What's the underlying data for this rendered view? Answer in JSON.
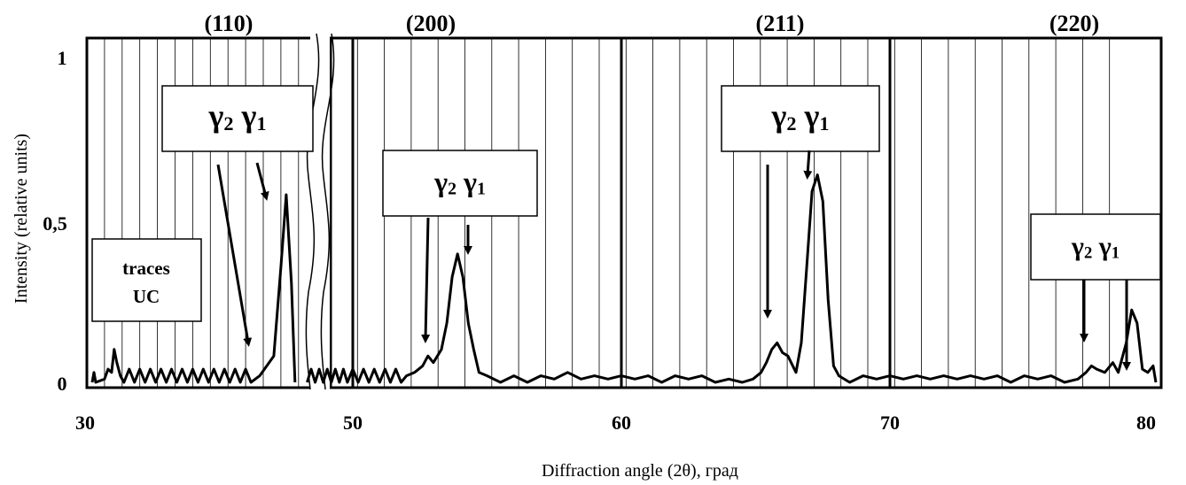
{
  "chart_data": {
    "type": "line",
    "xlabel": "Diffraction angle (2θ), град",
    "ylabel": "Intensity (relative units)",
    "x_tick_labels": [
      "30",
      "50",
      "60",
      "70",
      "80"
    ],
    "y_tick_labels": [
      "0",
      "0,5",
      "1"
    ],
    "xlim": [
      30,
      80
    ],
    "ylim": [
      0,
      1
    ],
    "axis_break": "between 40 and 50 (broken axis)",
    "grid": "vertical lines only",
    "reflections": [
      "(110)",
      "(200)",
      "(211)",
      "(220)"
    ],
    "annotations": {
      "traces_line1": "traces",
      "traces_line2": "UC",
      "gamma2": "γ",
      "gamma2_sub": "2",
      "gamma1": "γ",
      "gamma1_sub": "1"
    },
    "series": [
      {
        "points": [
          [
            30.3,
            0.0
          ],
          [
            30.4,
            0.03
          ],
          [
            30.5,
            0.0
          ],
          [
            31.0,
            0.01
          ],
          [
            31.2,
            0.04
          ],
          [
            31.4,
            0.03
          ],
          [
            31.55,
            0.1
          ],
          [
            31.7,
            0.06
          ],
          [
            31.9,
            0.02
          ],
          [
            32.1,
            0.0
          ],
          [
            32.4,
            0.04
          ],
          [
            32.7,
            0.0
          ],
          [
            33.0,
            0.04
          ],
          [
            33.3,
            0.0
          ],
          [
            33.6,
            0.04
          ],
          [
            33.9,
            0.0
          ],
          [
            34.2,
            0.04
          ],
          [
            34.5,
            0.0
          ],
          [
            34.8,
            0.04
          ],
          [
            35.1,
            0.0
          ],
          [
            35.4,
            0.04
          ],
          [
            35.7,
            0.0
          ],
          [
            36.0,
            0.04
          ],
          [
            36.3,
            0.0
          ],
          [
            36.6,
            0.04
          ],
          [
            36.9,
            0.0
          ],
          [
            37.2,
            0.04
          ],
          [
            37.5,
            0.0
          ],
          [
            37.8,
            0.04
          ],
          [
            38.1,
            0.0
          ],
          [
            38.4,
            0.04
          ],
          [
            38.7,
            0.0
          ],
          [
            39.0,
            0.04
          ],
          [
            39.3,
            0.0
          ],
          [
            39.8,
            0.02
          ],
          [
            40.6,
            0.08
          ],
          [
            41.0,
            0.35
          ],
          [
            41.3,
            0.57
          ],
          [
            41.6,
            0.3
          ],
          [
            41.8,
            0.0
          ]
        ]
      },
      {
        "points": [
          [
            48.3,
            0.0
          ],
          [
            48.45,
            0.04
          ],
          [
            48.6,
            0.0
          ],
          [
            48.75,
            0.04
          ],
          [
            48.9,
            0.0
          ],
          [
            49.05,
            0.04
          ],
          [
            49.2,
            0.0
          ],
          [
            49.35,
            0.04
          ],
          [
            49.5,
            0.0
          ],
          [
            49.65,
            0.04
          ],
          [
            49.8,
            0.0
          ],
          [
            50.0,
            0.04
          ],
          [
            50.2,
            0.0
          ],
          [
            50.4,
            0.04
          ],
          [
            50.6,
            0.0
          ],
          [
            50.8,
            0.04
          ],
          [
            51.0,
            0.0
          ],
          [
            51.2,
            0.04
          ],
          [
            51.4,
            0.0
          ],
          [
            51.6,
            0.04
          ],
          [
            51.8,
            0.0
          ],
          [
            52.0,
            0.02
          ],
          [
            52.3,
            0.03
          ],
          [
            52.6,
            0.05
          ],
          [
            52.8,
            0.08
          ],
          [
            53.0,
            0.06
          ],
          [
            53.3,
            0.1
          ],
          [
            53.5,
            0.18
          ],
          [
            53.7,
            0.32
          ],
          [
            53.9,
            0.39
          ],
          [
            54.1,
            0.32
          ],
          [
            54.3,
            0.18
          ],
          [
            54.5,
            0.1
          ],
          [
            54.7,
            0.03
          ],
          [
            55.0,
            0.02
          ],
          [
            55.5,
            0.0
          ],
          [
            56.0,
            0.02
          ],
          [
            56.5,
            0.0
          ],
          [
            57.0,
            0.02
          ],
          [
            57.5,
            0.01
          ],
          [
            58.0,
            0.03
          ],
          [
            58.5,
            0.01
          ],
          [
            59.0,
            0.02
          ],
          [
            59.5,
            0.01
          ],
          [
            60.0,
            0.02
          ],
          [
            60.5,
            0.01
          ],
          [
            61.0,
            0.02
          ],
          [
            61.5,
            0.0
          ],
          [
            62.0,
            0.02
          ],
          [
            62.5,
            0.01
          ],
          [
            63.0,
            0.02
          ],
          [
            63.5,
            0.0
          ],
          [
            64.0,
            0.01
          ],
          [
            64.5,
            0.0
          ],
          [
            64.9,
            0.01
          ],
          [
            65.2,
            0.03
          ],
          [
            65.4,
            0.06
          ],
          [
            65.6,
            0.1
          ],
          [
            65.8,
            0.12
          ],
          [
            66.0,
            0.09
          ],
          [
            66.2,
            0.08
          ],
          [
            66.5,
            0.03
          ],
          [
            66.7,
            0.12
          ],
          [
            66.9,
            0.35
          ],
          [
            67.1,
            0.58
          ],
          [
            67.3,
            0.63
          ],
          [
            67.5,
            0.55
          ],
          [
            67.7,
            0.25
          ],
          [
            67.9,
            0.05
          ],
          [
            68.1,
            0.02
          ],
          [
            68.5,
            0.0
          ],
          [
            69.0,
            0.02
          ],
          [
            69.5,
            0.01
          ],
          [
            70.0,
            0.02
          ],
          [
            70.5,
            0.01
          ],
          [
            71.0,
            0.02
          ],
          [
            71.5,
            0.01
          ],
          [
            72.0,
            0.02
          ],
          [
            72.5,
            0.01
          ],
          [
            73.0,
            0.02
          ],
          [
            73.5,
            0.01
          ],
          [
            74.0,
            0.02
          ],
          [
            74.5,
            0.0
          ],
          [
            75.0,
            0.02
          ],
          [
            75.5,
            0.01
          ],
          [
            76.0,
            0.02
          ],
          [
            76.5,
            0.0
          ],
          [
            77.0,
            0.01
          ],
          [
            77.3,
            0.03
          ],
          [
            77.5,
            0.05
          ],
          [
            77.7,
            0.04
          ],
          [
            78.0,
            0.03
          ],
          [
            78.3,
            0.06
          ],
          [
            78.5,
            0.03
          ],
          [
            78.8,
            0.12
          ],
          [
            79.0,
            0.22
          ],
          [
            79.2,
            0.18
          ],
          [
            79.4,
            0.04
          ],
          [
            79.6,
            0.03
          ],
          [
            79.8,
            0.05
          ],
          [
            79.9,
            0.0
          ]
        ]
      }
    ]
  }
}
